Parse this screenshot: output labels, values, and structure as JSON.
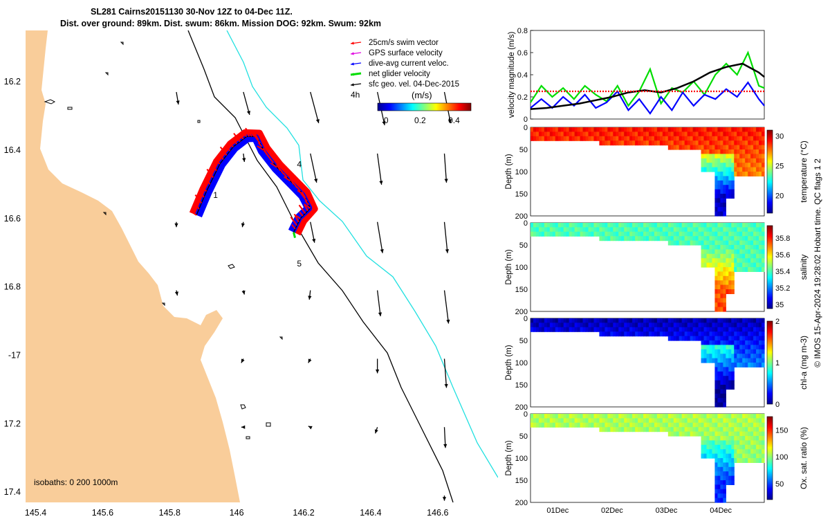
{
  "title_line1": "SL281 Cairns20151130 30-Nov 12Z to 04-Dec 11Z.",
  "title_line2": "Dist. over ground: 89km. Dist. swum: 86km. Mission DOG: 92km. Swum: 92km",
  "credit": "© IMOS 15-Apr-2024 19:28:02 Hobart time. QC flags 1  2",
  "colors": {
    "land": "#f9cd9a",
    "swim": "#ff0000",
    "gps": "#e000e0",
    "current": "#0000ff",
    "net": "#00dd00",
    "geo": "#000000",
    "isobath200": "#000000",
    "isobath1000": "#20e0e0"
  },
  "chart_data": [
    {
      "type": "map",
      "xlabel_ticks": [
        "145.4",
        "145.6",
        "145.8",
        "146",
        "146.2",
        "146.4",
        "146.6"
      ],
      "xlim": [
        145.37,
        146.78
      ],
      "ylabel_ticks": [
        "16.2",
        "16.4",
        "16.6",
        "16.8",
        "-17",
        "17.2",
        "17.4"
      ],
      "ylim": [
        -17.43,
        -16.05
      ],
      "legend": [
        {
          "label": "25cm/s swim vector",
          "color": "#ff0000"
        },
        {
          "label": "GPS surface velocity",
          "color": "#e000e0"
        },
        {
          "label": "dive-avg current veloc.",
          "color": "#0000ff"
        },
        {
          "label": "net glider velocity",
          "color": "#00dd00"
        },
        {
          "label": "sfc geo. vel. 04-Dec-2015",
          "color": "#000000"
        }
      ],
      "colorbar": {
        "label": "(m/s)",
        "ticks": [
          "0",
          "0.2",
          "0.4"
        ],
        "range": [
          -0.05,
          0.5
        ]
      },
      "annotation_4h": "4h",
      "isobaths_label": "isobaths: 0   200  1000m",
      "track_labels": [
        {
          "text": "1",
          "lon": 145.93,
          "lat": -16.54
        },
        {
          "text": "4",
          "lon": 146.18,
          "lat": -16.45
        },
        {
          "text": "5",
          "lon": 146.18,
          "lat": -16.74
        }
      ],
      "track": [
        [
          145.88,
          -16.59
        ],
        [
          145.91,
          -16.52
        ],
        [
          145.95,
          -16.44
        ],
        [
          145.99,
          -16.39
        ],
        [
          146.03,
          -16.36
        ],
        [
          146.06,
          -16.36
        ],
        [
          146.08,
          -16.4
        ],
        [
          146.12,
          -16.45
        ],
        [
          146.16,
          -16.49
        ],
        [
          146.2,
          -16.53
        ],
        [
          146.22,
          -16.57
        ],
        [
          146.19,
          -16.6
        ],
        [
          146.17,
          -16.64
        ]
      ],
      "geo_vectors": [
        {
          "lon": 145.82,
          "lat": -16.23,
          "u": 0.02,
          "v": -0.12
        },
        {
          "lon": 146.02,
          "lat": -16.23,
          "u": 0.06,
          "v": -0.22
        },
        {
          "lon": 146.22,
          "lat": -16.23,
          "u": 0.08,
          "v": -0.3
        },
        {
          "lon": 146.42,
          "lat": -16.23,
          "u": 0.07,
          "v": -0.32
        },
        {
          "lon": 146.62,
          "lat": -16.23,
          "u": 0.06,
          "v": -0.3
        },
        {
          "lon": 146.02,
          "lat": -16.41,
          "u": 0.01,
          "v": -0.08
        },
        {
          "lon": 146.22,
          "lat": -16.41,
          "u": 0.06,
          "v": -0.28
        },
        {
          "lon": 146.42,
          "lat": -16.41,
          "u": 0.04,
          "v": -0.3
        },
        {
          "lon": 146.62,
          "lat": -16.41,
          "u": 0.02,
          "v": -0.28
        },
        {
          "lon": 145.82,
          "lat": -16.61,
          "u": 0.0,
          "v": -0.05
        },
        {
          "lon": 146.02,
          "lat": -16.61,
          "u": -0.01,
          "v": -0.05
        },
        {
          "lon": 146.22,
          "lat": -16.61,
          "u": 0.04,
          "v": -0.2
        },
        {
          "lon": 146.42,
          "lat": -16.61,
          "u": 0.05,
          "v": -0.3
        },
        {
          "lon": 146.62,
          "lat": -16.61,
          "u": 0.03,
          "v": -0.3
        },
        {
          "lon": 145.82,
          "lat": -16.81,
          "u": 0.01,
          "v": -0.05
        },
        {
          "lon": 146.02,
          "lat": -16.81,
          "u": 0.01,
          "v": -0.04
        },
        {
          "lon": 146.22,
          "lat": -16.81,
          "u": -0.01,
          "v": -0.09
        },
        {
          "lon": 146.42,
          "lat": -16.81,
          "u": 0.03,
          "v": -0.25
        },
        {
          "lon": 146.62,
          "lat": -16.81,
          "u": 0.04,
          "v": -0.32
        },
        {
          "lon": 146.02,
          "lat": -17.01,
          "u": -0.02,
          "v": -0.04
        },
        {
          "lon": 146.22,
          "lat": -17.01,
          "u": -0.02,
          "v": -0.04
        },
        {
          "lon": 146.42,
          "lat": -17.01,
          "u": 0.0,
          "v": -0.14
        },
        {
          "lon": 146.62,
          "lat": -17.01,
          "u": 0.02,
          "v": -0.28
        },
        {
          "lon": 146.02,
          "lat": -17.21,
          "u": -0.02,
          "v": 0.0
        },
        {
          "lon": 146.22,
          "lat": -17.21,
          "u": -0.02,
          "v": 0.01
        },
        {
          "lon": 146.42,
          "lat": -17.21,
          "u": -0.02,
          "v": -0.06
        },
        {
          "lon": 146.62,
          "lat": -17.21,
          "u": 0.01,
          "v": -0.2
        },
        {
          "lon": 146.62,
          "lat": -17.41,
          "u": 0.0,
          "v": -0.05
        }
      ]
    },
    {
      "type": "line",
      "ylabel": "velocity magnitude (m/s)",
      "ylim": [
        0,
        0.8
      ],
      "yticks": [
        "0",
        "0.2",
        "0.4",
        "0.6",
        "0.8"
      ],
      "xlim_days": [
        0.5,
        4.8
      ],
      "series": [
        {
          "name": "net glider velocity",
          "color": "#00dd00",
          "x": [
            0.5,
            0.7,
            0.9,
            1.1,
            1.3,
            1.5,
            1.7,
            1.9,
            2.1,
            2.3,
            2.5,
            2.7,
            2.9,
            3.1,
            3.3,
            3.5,
            3.7,
            3.9,
            4.1,
            4.3,
            4.5,
            4.7,
            4.8
          ],
          "values": [
            0.15,
            0.3,
            0.2,
            0.28,
            0.18,
            0.3,
            0.22,
            0.16,
            0.3,
            0.12,
            0.25,
            0.45,
            0.14,
            0.28,
            0.24,
            0.34,
            0.22,
            0.4,
            0.5,
            0.4,
            0.6,
            0.3,
            0.28
          ]
        },
        {
          "name": "dive-avg current veloc.",
          "color": "#0000ff",
          "x": [
            0.5,
            0.7,
            0.9,
            1.1,
            1.3,
            1.5,
            1.7,
            1.9,
            2.1,
            2.3,
            2.5,
            2.7,
            2.9,
            3.1,
            3.3,
            3.5,
            3.7,
            3.9,
            4.1,
            4.3,
            4.5,
            4.7,
            4.8
          ],
          "values": [
            0.1,
            0.18,
            0.1,
            0.2,
            0.12,
            0.22,
            0.1,
            0.15,
            0.25,
            0.08,
            0.18,
            0.05,
            0.2,
            0.08,
            0.24,
            0.12,
            0.22,
            0.18,
            0.27,
            0.2,
            0.33,
            0.18,
            0.12
          ]
        },
        {
          "name": "sfc geo. vel.",
          "color": "#000000",
          "x": [
            0.5,
            0.8,
            1.1,
            1.4,
            1.7,
            2.0,
            2.3,
            2.6,
            2.9,
            3.2,
            3.5,
            3.8,
            4.1,
            4.4,
            4.7,
            4.8
          ],
          "values": [
            0.09,
            0.1,
            0.12,
            0.14,
            0.17,
            0.2,
            0.24,
            0.26,
            0.24,
            0.28,
            0.34,
            0.42,
            0.47,
            0.5,
            0.42,
            0.38
          ]
        },
        {
          "name": "25cm/s swim",
          "color": "#ff0000",
          "x": [
            0.5,
            4.8
          ],
          "values": [
            0.25,
            0.25
          ]
        }
      ]
    },
    {
      "type": "heatmap",
      "variable": "temperature",
      "ylabel": "Depth (m)",
      "yticks": [
        "0",
        "50",
        "100",
        "150",
        "200"
      ],
      "colorbar_label": "temperature (°C)",
      "cticks": [
        "30",
        "25",
        "20"
      ],
      "crange": [
        17,
        31
      ],
      "surface_value": 29,
      "deep_value": 26,
      "core_value": 18
    },
    {
      "type": "heatmap",
      "variable": "salinity",
      "ylabel": "Depth (m)",
      "yticks": [
        "0",
        "50",
        "100",
        "150",
        "200"
      ],
      "colorbar_label": "salinity",
      "cticks": [
        "35.8",
        "35.6",
        "35.4",
        "35.2",
        "35"
      ],
      "crange": [
        34.95,
        35.95
      ],
      "surface_value": 35.4,
      "deep_value": 35.4,
      "core_value": 35.75
    },
    {
      "type": "heatmap",
      "variable": "chl-a",
      "ylabel": "Depth (m)",
      "yticks": [
        "0",
        "50",
        "100",
        "150",
        "200"
      ],
      "colorbar_label": "chl-a (mg m-3)",
      "cticks": [
        "2",
        "1",
        "0"
      ],
      "crange": [
        0,
        2
      ],
      "surface_value": 0.1,
      "deep_value": 0.9,
      "core_value": 0.05
    },
    {
      "type": "heatmap",
      "variable": "oxygen",
      "ylabel": "Depth (m)",
      "yticks": [
        "0",
        "50",
        "100",
        "150",
        "200"
      ],
      "colorbar_label": "Ox. sat. ratio (%)",
      "cticks": [
        "150",
        "100",
        "50"
      ],
      "crange": [
        20,
        175
      ],
      "surface_value": 105,
      "deep_value": 95,
      "core_value": 45,
      "xticks": [
        "01Dec",
        "02Dec",
        "03Dec",
        "04Dec"
      ],
      "xtick_days": [
        1,
        2,
        3,
        4
      ]
    }
  ]
}
